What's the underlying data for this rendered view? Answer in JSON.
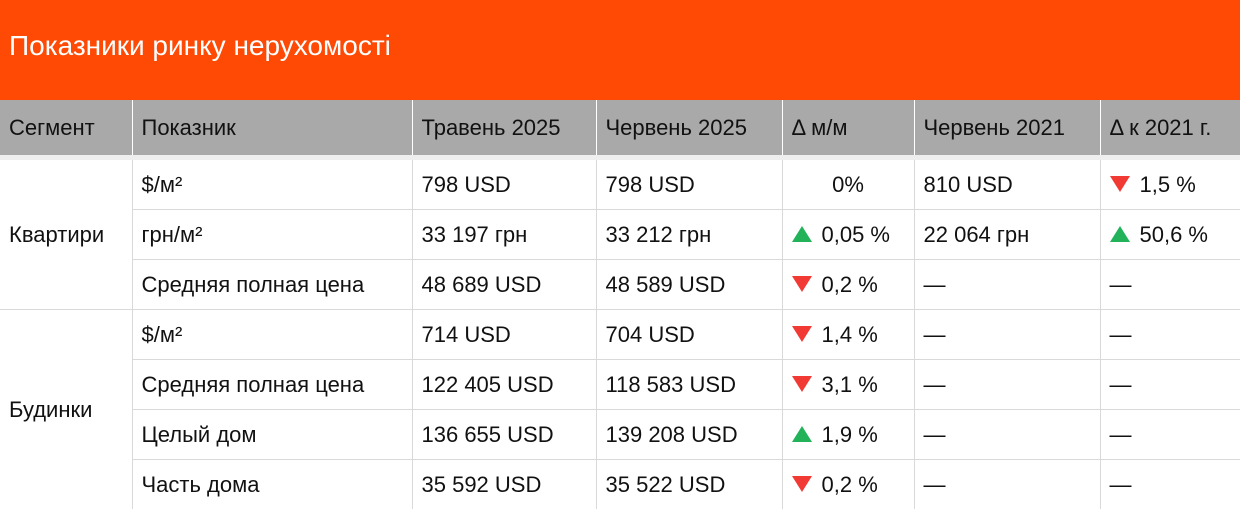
{
  "title": "Показники ринку нерухомості",
  "colors": {
    "banner": "#fe4a04",
    "header_bg": "#a9a9a9",
    "down": "#f23a35",
    "up": "#21b25a"
  },
  "headers": [
    "Сегмент",
    "Показник",
    "Травень 2025",
    "Червень 2025",
    "Δ м/м",
    "Червень 2021",
    "Δ к 2021 г."
  ],
  "segments": [
    {
      "name": "Квартири",
      "rows": [
        {
          "indicator": "$/м²",
          "may": "798 USD",
          "june": "798 USD",
          "dmm": {
            "dir": "none",
            "text": "0%"
          },
          "june2021": "810 USD",
          "d2021": {
            "dir": "down",
            "text": "1,5 %"
          }
        },
        {
          "indicator": "грн/м²",
          "may": "33 197 грн",
          "june": "33 212 грн",
          "dmm": {
            "dir": "up",
            "text": "0,05 %"
          },
          "june2021": "22 064 грн",
          "d2021": {
            "dir": "up",
            "text": "50,6 %"
          }
        },
        {
          "indicator": "Средняя полная цена",
          "may": "48 689 USD",
          "june": "48 589 USD",
          "dmm": {
            "dir": "down",
            "text": "0,2 %"
          },
          "june2021": "—",
          "d2021": {
            "dir": "none",
            "text": "—"
          }
        }
      ]
    },
    {
      "name": "Будинки",
      "rows": [
        {
          "indicator": "$/м²",
          "may": "714 USD",
          "june": "704 USD",
          "dmm": {
            "dir": "down",
            "text": "1,4 %"
          },
          "june2021": "—",
          "d2021": {
            "dir": "none",
            "text": "—"
          }
        },
        {
          "indicator": "Средняя полная цена",
          "may": "122 405 USD",
          "june": "118 583 USD",
          "dmm": {
            "dir": "down",
            "text": "3,1 %"
          },
          "june2021": "—",
          "d2021": {
            "dir": "none",
            "text": "—"
          }
        },
        {
          "indicator": "Целый дом",
          "may": "136 655 USD",
          "june": "139 208 USD",
          "dmm": {
            "dir": "up",
            "text": "1,9 %"
          },
          "june2021": "—",
          "d2021": {
            "dir": "none",
            "text": "—"
          }
        },
        {
          "indicator": "Часть дома",
          "may": "35 592 USD",
          "june": "35 522 USD",
          "dmm": {
            "dir": "down",
            "text": "0,2 %"
          },
          "june2021": "—",
          "d2021": {
            "dir": "none",
            "text": "—"
          }
        }
      ]
    }
  ]
}
